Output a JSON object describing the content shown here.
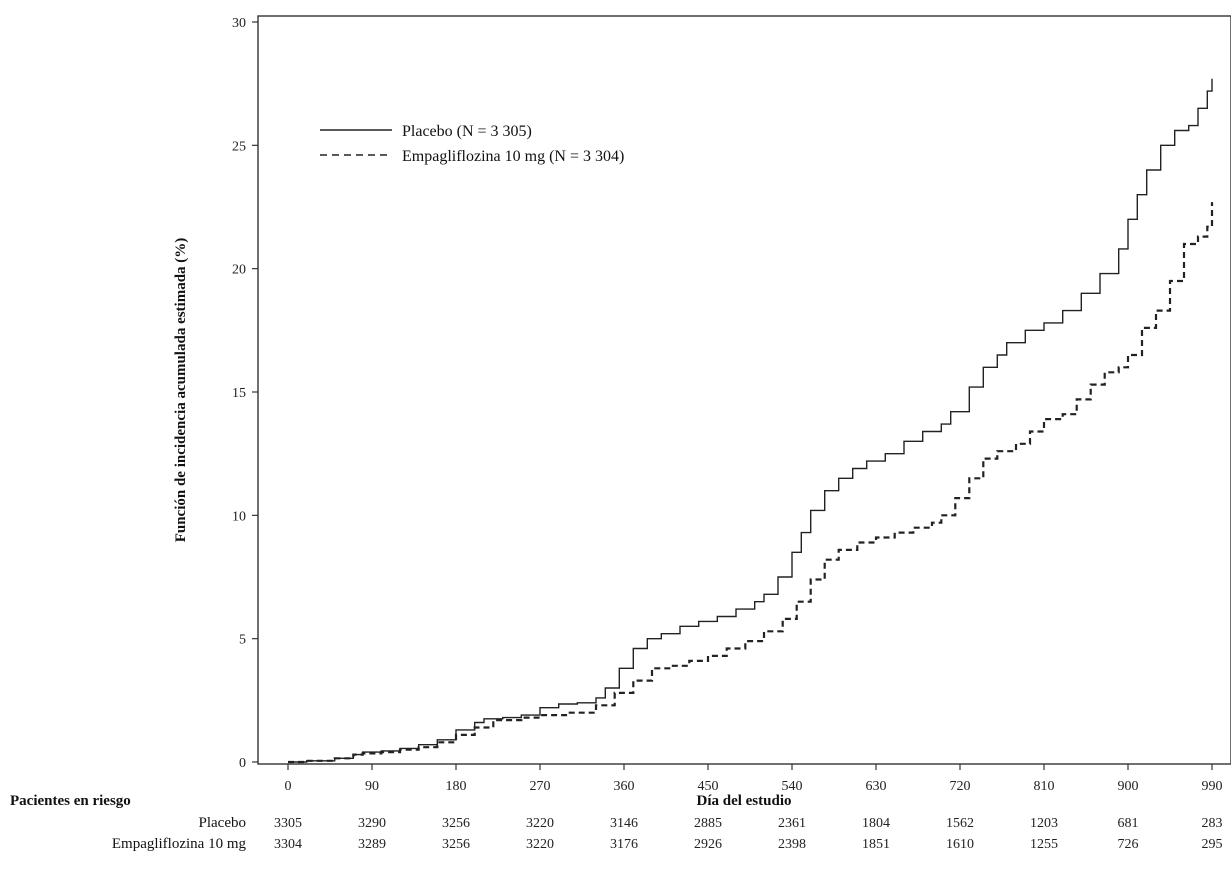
{
  "chart_data": {
    "type": "line",
    "xlabel": "Día del estudio",
    "ylabel": "Función de incidencia acumulada estimada (%)",
    "xlim": [
      0,
      990
    ],
    "ylim": [
      0,
      30
    ],
    "xticks": [
      0,
      90,
      180,
      270,
      360,
      450,
      540,
      630,
      720,
      810,
      900,
      990
    ],
    "yticks": [
      0,
      5,
      10,
      15,
      20,
      25,
      30
    ],
    "legend_position": "top-left",
    "grid": false,
    "series": [
      {
        "name": "Placebo (N = 3 305)",
        "style": "solid",
        "color": "#222222",
        "points": [
          [
            0,
            0
          ],
          [
            20,
            0.05
          ],
          [
            50,
            0.15
          ],
          [
            70,
            0.3
          ],
          [
            80,
            0.4
          ],
          [
            100,
            0.45
          ],
          [
            120,
            0.55
          ],
          [
            140,
            0.7
          ],
          [
            160,
            0.9
          ],
          [
            180,
            1.3
          ],
          [
            200,
            1.6
          ],
          [
            210,
            1.75
          ],
          [
            230,
            1.8
          ],
          [
            250,
            1.9
          ],
          [
            270,
            2.2
          ],
          [
            290,
            2.35
          ],
          [
            310,
            2.4
          ],
          [
            330,
            2.6
          ],
          [
            340,
            3.0
          ],
          [
            355,
            3.8
          ],
          [
            370,
            4.6
          ],
          [
            385,
            5.0
          ],
          [
            400,
            5.2
          ],
          [
            420,
            5.5
          ],
          [
            440,
            5.7
          ],
          [
            460,
            5.9
          ],
          [
            480,
            6.2
          ],
          [
            500,
            6.5
          ],
          [
            510,
            6.8
          ],
          [
            525,
            7.5
          ],
          [
            540,
            8.5
          ],
          [
            550,
            9.3
          ],
          [
            560,
            10.2
          ],
          [
            575,
            11.0
          ],
          [
            590,
            11.5
          ],
          [
            605,
            11.9
          ],
          [
            620,
            12.2
          ],
          [
            640,
            12.5
          ],
          [
            660,
            13.0
          ],
          [
            680,
            13.4
          ],
          [
            700,
            13.7
          ],
          [
            710,
            14.2
          ],
          [
            730,
            15.2
          ],
          [
            745,
            16.0
          ],
          [
            760,
            16.5
          ],
          [
            770,
            17.0
          ],
          [
            790,
            17.5
          ],
          [
            810,
            17.8
          ],
          [
            830,
            18.3
          ],
          [
            850,
            19.0
          ],
          [
            870,
            19.8
          ],
          [
            890,
            20.8
          ],
          [
            900,
            22.0
          ],
          [
            910,
            23.0
          ],
          [
            920,
            24.0
          ],
          [
            935,
            25.0
          ],
          [
            950,
            25.6
          ],
          [
            965,
            25.8
          ],
          [
            975,
            26.5
          ],
          [
            985,
            27.2
          ],
          [
            990,
            27.7
          ]
        ]
      },
      {
        "name": "Empagliflozina 10 mg (N = 3 304)",
        "style": "dashed",
        "color": "#222222",
        "points": [
          [
            0,
            0
          ],
          [
            20,
            0.05
          ],
          [
            50,
            0.15
          ],
          [
            70,
            0.3
          ],
          [
            80,
            0.35
          ],
          [
            100,
            0.4
          ],
          [
            120,
            0.5
          ],
          [
            140,
            0.6
          ],
          [
            160,
            0.8
          ],
          [
            180,
            1.1
          ],
          [
            200,
            1.4
          ],
          [
            220,
            1.7
          ],
          [
            250,
            1.8
          ],
          [
            270,
            1.9
          ],
          [
            300,
            2.0
          ],
          [
            330,
            2.3
          ],
          [
            350,
            2.8
          ],
          [
            370,
            3.3
          ],
          [
            390,
            3.8
          ],
          [
            410,
            3.9
          ],
          [
            430,
            4.1
          ],
          [
            450,
            4.3
          ],
          [
            470,
            4.6
          ],
          [
            490,
            4.9
          ],
          [
            510,
            5.3
          ],
          [
            530,
            5.8
          ],
          [
            545,
            6.5
          ],
          [
            560,
            7.4
          ],
          [
            575,
            8.2
          ],
          [
            590,
            8.6
          ],
          [
            610,
            8.9
          ],
          [
            630,
            9.1
          ],
          [
            650,
            9.3
          ],
          [
            670,
            9.5
          ],
          [
            690,
            9.7
          ],
          [
            700,
            10.0
          ],
          [
            715,
            10.7
          ],
          [
            730,
            11.5
          ],
          [
            745,
            12.3
          ],
          [
            760,
            12.6
          ],
          [
            780,
            12.9
          ],
          [
            795,
            13.4
          ],
          [
            810,
            13.9
          ],
          [
            830,
            14.1
          ],
          [
            845,
            14.7
          ],
          [
            860,
            15.3
          ],
          [
            875,
            15.8
          ],
          [
            890,
            16.0
          ],
          [
            900,
            16.5
          ],
          [
            915,
            17.6
          ],
          [
            930,
            18.3
          ],
          [
            945,
            19.5
          ],
          [
            960,
            21.0
          ],
          [
            975,
            21.3
          ],
          [
            985,
            21.7
          ],
          [
            990,
            22.7
          ]
        ]
      }
    ],
    "risk_table": {
      "title": "Pacientes en riesgo",
      "rows": [
        {
          "label": "Placebo",
          "values": [
            "3305",
            "3290",
            "3256",
            "3220",
            "3146",
            "2885",
            "2361",
            "1804",
            "1562",
            "1203",
            "681",
            "283"
          ]
        },
        {
          "label": "Empagliflozina 10 mg",
          "values": [
            "3304",
            "3289",
            "3256",
            "3220",
            "3176",
            "2926",
            "2398",
            "1851",
            "1610",
            "1255",
            "726",
            "295"
          ]
        }
      ]
    }
  }
}
